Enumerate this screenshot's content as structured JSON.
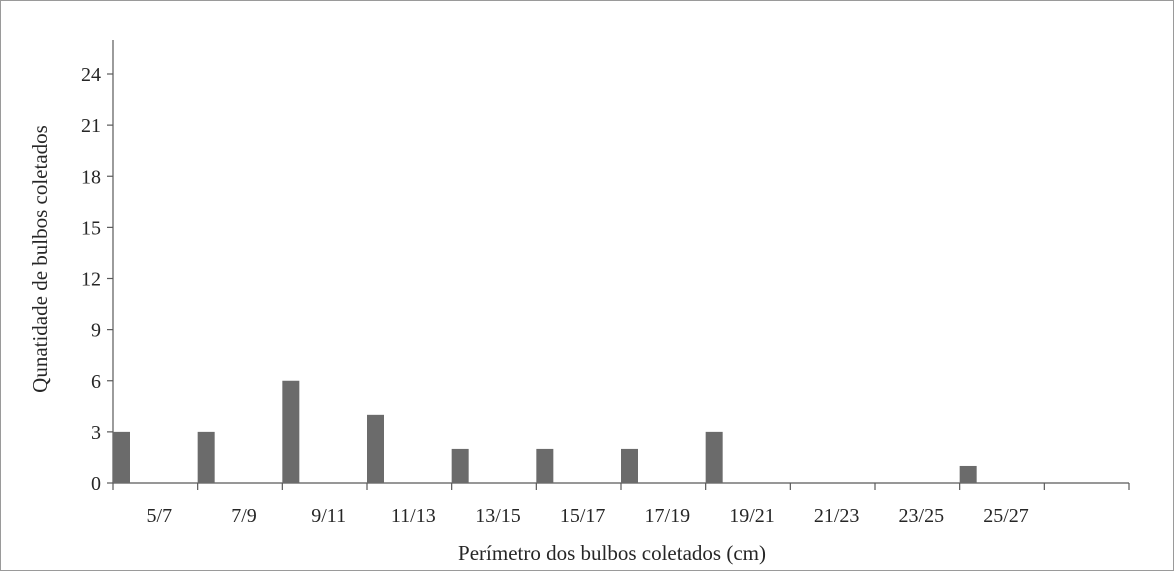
{
  "chart_data": {
    "type": "bar",
    "title": "",
    "xlabel": "Perímetro dos bulbos coletados (cm)",
    "ylabel": "Qunatidade de bulbos coletados",
    "ylim": [
      0,
      24
    ],
    "yticks": [
      0,
      3,
      6,
      9,
      12,
      15,
      18,
      21,
      24
    ],
    "ytick_labels": [
      "0",
      "3",
      "6",
      "9",
      "12",
      "15",
      "18",
      "21",
      "24"
    ],
    "categories": [
      "5/7",
      "7/9",
      "9/11",
      "11/13",
      "13/15",
      "15/17",
      "17/19",
      "19/21",
      "21/23",
      "23/25",
      "25/27"
    ],
    "values": [
      3,
      3,
      6,
      4,
      2,
      2,
      2,
      3,
      0,
      0,
      1
    ],
    "bar_color": "#6b6b6b",
    "grid": false,
    "legend": "none"
  }
}
